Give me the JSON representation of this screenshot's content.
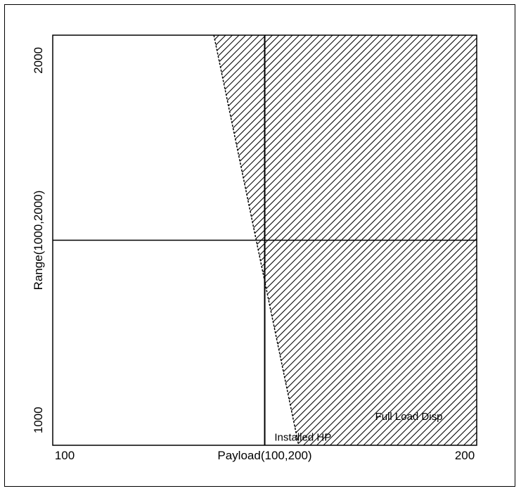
{
  "chart_data": {
    "type": "area",
    "xlabel": "Payload(100,200)",
    "ylabel": "Range(1000,2000)",
    "xlim": [
      100,
      200
    ],
    "ylim": [
      930,
      2070
    ],
    "xticks": [
      100,
      200
    ],
    "yticks": [
      1000,
      2000
    ],
    "xtick_labels": [
      "100",
      "200"
    ],
    "ytick_labels": [
      "1000",
      "2000"
    ],
    "reference_lines": {
      "vertical_x": 150,
      "horizontal_y": 1500
    },
    "feasible_region_boundary": [
      {
        "x": 138,
        "y": 2070
      },
      {
        "x": 158,
        "y": 930
      }
    ],
    "annotations": [
      {
        "text": "Full Load Disp",
        "x": 184,
        "y": 1000
      },
      {
        "text": "Installed HP",
        "x": 159,
        "y": 943
      }
    ],
    "grid": false,
    "colors": {
      "hatch": "#000000",
      "axes": "#000000",
      "background": "#ffffff"
    }
  }
}
